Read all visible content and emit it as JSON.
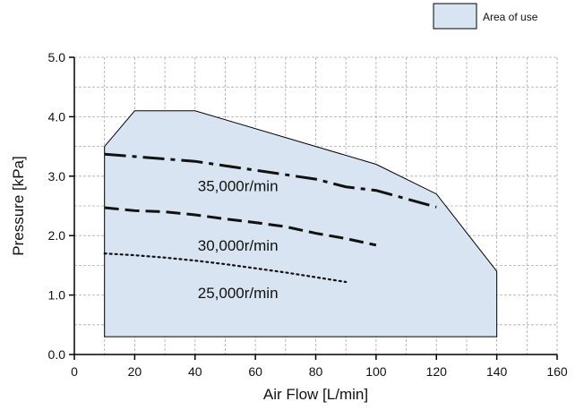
{
  "chart_data": {
    "type": "area",
    "xlabel": "Air Flow [L/min]",
    "ylabel": "Pressure [kPa]",
    "xlim": [
      0,
      160
    ],
    "ylim": [
      0,
      5.0
    ],
    "x_ticks": [
      0,
      20,
      40,
      60,
      80,
      100,
      120,
      140,
      160
    ],
    "y_ticks": [
      0,
      1.0,
      2.0,
      3.0,
      4.0,
      5.0
    ],
    "y_tick_labels": [
      "0.0",
      "1.0",
      "2.0",
      "3.0",
      "4.0",
      "5.0"
    ],
    "grid": true,
    "legend": {
      "position": "top-right",
      "label": "Area of use"
    },
    "area": {
      "name": "Area of use",
      "color": "#d9e4f2",
      "points": [
        [
          10,
          0.3
        ],
        [
          10,
          3.5
        ],
        [
          20,
          4.1
        ],
        [
          40,
          4.1
        ],
        [
          80,
          3.5
        ],
        [
          100,
          3.2
        ],
        [
          120,
          2.7
        ],
        [
          130,
          2.05
        ],
        [
          140,
          1.4
        ],
        [
          140,
          0.3
        ]
      ]
    },
    "series": [
      {
        "label": "35,000r/min",
        "style": "dash-dot",
        "x": [
          10,
          20,
          40,
          60,
          80,
          90,
          100,
          110,
          120
        ],
        "y": [
          3.37,
          3.33,
          3.25,
          3.1,
          2.95,
          2.82,
          2.76,
          2.62,
          2.48
        ]
      },
      {
        "label": "30,000r/min",
        "style": "dashed",
        "x": [
          10,
          20,
          30,
          40,
          50,
          60,
          70,
          80,
          90,
          100
        ],
        "y": [
          2.47,
          2.42,
          2.4,
          2.35,
          2.28,
          2.22,
          2.15,
          2.04,
          1.95,
          1.84
        ]
      },
      {
        "label": "25,000r/min",
        "style": "dotted",
        "x": [
          10,
          20,
          30,
          40,
          50,
          60,
          70,
          80,
          90
        ],
        "y": [
          1.7,
          1.67,
          1.63,
          1.58,
          1.52,
          1.45,
          1.38,
          1.3,
          1.22
        ]
      }
    ]
  }
}
